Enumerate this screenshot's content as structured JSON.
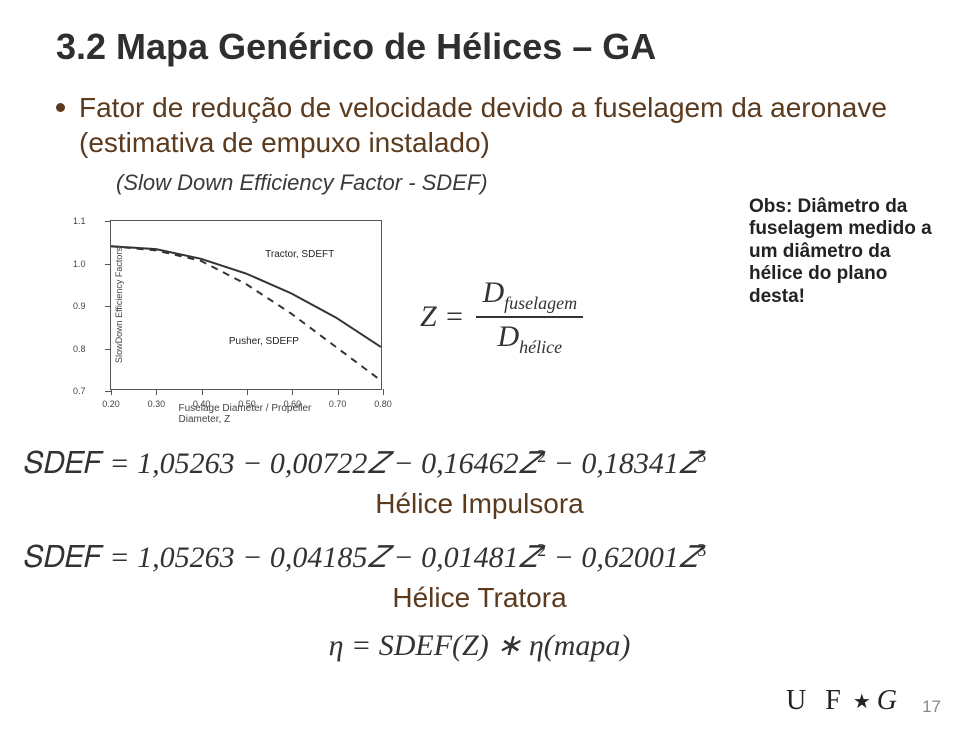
{
  "title": "3.2 Mapa Genérico de Hélices – GA",
  "bullet": "Fator de redução de velocidade devido a fuselagem da aeronave (estimativa de empuxo instalado)",
  "efficiency_line": "(Slow Down Efficiency Factor - SDEF)",
  "obs": "Obs: Diâmetro da fuselagem medido a um diâmetro da hélice do plano desta!",
  "z_formula": {
    "lhs": "Z =",
    "num_var": "D",
    "num_sub": "fuselagem",
    "den_var": "D",
    "den_sub": "hélice"
  },
  "chart": {
    "y_axis_title": "SlowDown Efficiency Factors",
    "x_axis_title": "Fuselage Diameter / Propeller Diameter, Z",
    "xlim": [
      0.2,
      0.8
    ],
    "ylim": [
      0.7,
      1.1
    ],
    "xticks": [
      0.2,
      0.3,
      0.4,
      0.5,
      0.6,
      0.7,
      0.8
    ],
    "yticks": [
      0.7,
      0.8,
      0.9,
      1.0,
      1.1
    ],
    "series": [
      {
        "name": "Tractor, SDEFT",
        "style": "solid",
        "color": "#333333",
        "label_pos": {
          "x": 0.54,
          "y": 1.035
        },
        "points": [
          [
            0.2,
            1.04
          ],
          [
            0.3,
            1.033
          ],
          [
            0.4,
            1.01
          ],
          [
            0.5,
            0.975
          ],
          [
            0.6,
            0.928
          ],
          [
            0.7,
            0.87
          ],
          [
            0.8,
            0.8
          ]
        ]
      },
      {
        "name": "Pusher, SDEFP",
        "style": "dashed",
        "color": "#333333",
        "label_pos": {
          "x": 0.46,
          "y": 0.83
        },
        "points": [
          [
            0.2,
            1.04
          ],
          [
            0.3,
            1.03
          ],
          [
            0.4,
            1.005
          ],
          [
            0.5,
            0.95
          ],
          [
            0.6,
            0.88
          ],
          [
            0.7,
            0.8
          ],
          [
            0.8,
            0.72
          ]
        ]
      }
    ]
  },
  "poly1": "SDEF = 1,05263 − 0,00722Z − 0,16462Z² − 0,18341Z³",
  "poly1_caption": "Hélice Impulsora",
  "poly2": "SDEF = 1,05263 − 0,04185Z − 0,01481Z² − 0,62001Z³",
  "poly2_caption": "Hélice Tratora",
  "eta_line": "η = SDEF(Z) ∗ η(mapa)",
  "logo": "U F ★ G",
  "page": "17"
}
